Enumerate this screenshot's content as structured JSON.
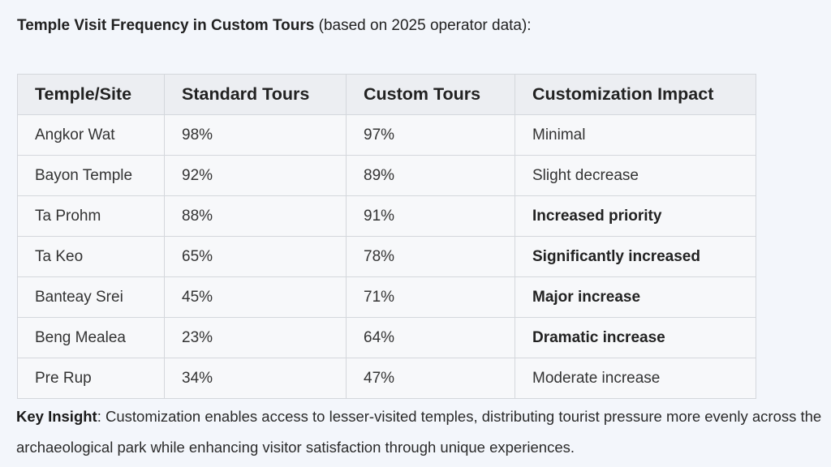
{
  "heading": {
    "title": "Temple Visit Frequency in Custom Tours",
    "subtitle": " (based on 2025 operator data):"
  },
  "table": {
    "headers": [
      "Temple/Site",
      "Standard Tours",
      "Custom Tours",
      "Customization Impact"
    ],
    "rows": [
      {
        "site": "Angkor Wat",
        "standard": "98%",
        "custom": "97%",
        "impact": "Minimal",
        "impact_bold": false
      },
      {
        "site": "Bayon Temple",
        "standard": "92%",
        "custom": "89%",
        "impact": "Slight decrease",
        "impact_bold": false
      },
      {
        "site": "Ta Prohm",
        "standard": "88%",
        "custom": "91%",
        "impact": "Increased priority",
        "impact_bold": true
      },
      {
        "site": "Ta Keo",
        "standard": "65%",
        "custom": "78%",
        "impact": "Significantly increased",
        "impact_bold": true
      },
      {
        "site": "Banteay Srei",
        "standard": "45%",
        "custom": "71%",
        "impact": "Major increase",
        "impact_bold": true
      },
      {
        "site": "Beng Mealea",
        "standard": "23%",
        "custom": "64%",
        "impact": "Dramatic increase",
        "impact_bold": true
      },
      {
        "site": "Pre Rup",
        "standard": "34%",
        "custom": "47%",
        "impact": "Moderate increase",
        "impact_bold": false
      }
    ]
  },
  "insight": {
    "label": "Key Insight",
    "text": ": Customization enables access to lesser-visited temples, distributing tourist pressure more evenly across the archaeological park while enhancing visitor satisfaction through unique experiences."
  }
}
